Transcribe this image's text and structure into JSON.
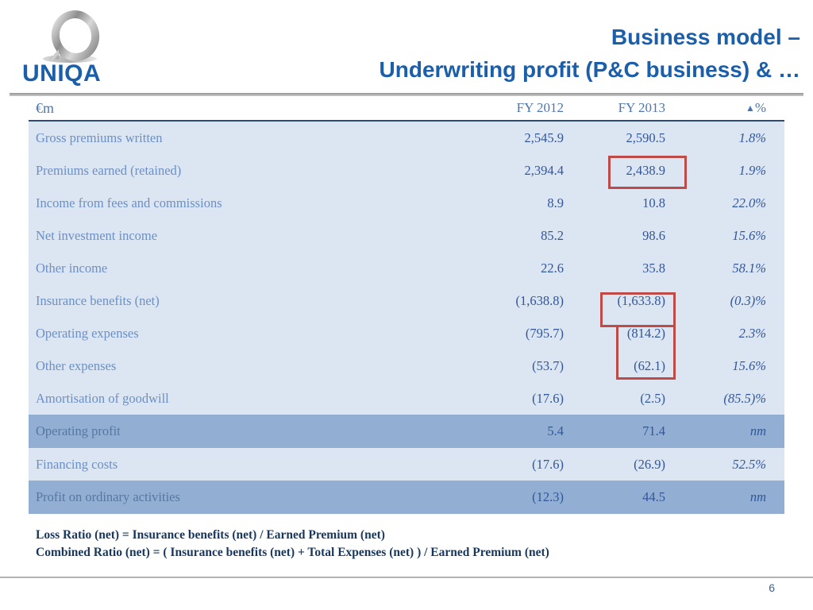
{
  "slide": {
    "logo_text": "UNIQA",
    "title_line1": "Business model –",
    "title_line2": "Underwriting profit (P&C business) & …",
    "page_number": "6"
  },
  "table": {
    "unit_label": "€m",
    "columns": {
      "col1": "FY 2012",
      "col2": "FY 2013",
      "col3_icon": "▲",
      "col3": "%"
    },
    "rows": [
      {
        "label": "Gross premiums written",
        "fy2012": "2,545.9",
        "fy2013": "2,590.5",
        "delta": "1.8%",
        "shade": "light"
      },
      {
        "label": "Premiums earned (retained)",
        "fy2012": "2,394.4",
        "fy2013": "2,438.9",
        "delta": "1.9%",
        "shade": "light",
        "highlight_fy2013": true
      },
      {
        "label": "Income from fees and commissions",
        "fy2012": "8.9",
        "fy2013": "10.8",
        "delta": "22.0%",
        "shade": "light"
      },
      {
        "label": "Net investment income",
        "fy2012": "85.2",
        "fy2013": "98.6",
        "delta": "15.6%",
        "shade": "light"
      },
      {
        "label": "Other income",
        "fy2012": "22.6",
        "fy2013": "35.8",
        "delta": "58.1%",
        "shade": "light"
      },
      {
        "label": "Insurance benefits (net)",
        "fy2012": "(1,638.8)",
        "fy2013": "(1,633.8)",
        "delta": "(0.3)%",
        "shade": "light",
        "highlight_fy2013": true
      },
      {
        "label": "Operating expenses",
        "fy2012": "(795.7)",
        "fy2013": "(814.2)",
        "delta": "2.3%",
        "shade": "light",
        "highlight_fy2013": true
      },
      {
        "label": "Other expenses",
        "fy2012": "(53.7)",
        "fy2013": "(62.1)",
        "delta": "15.6%",
        "shade": "light",
        "highlight_fy2013": true
      },
      {
        "label": "Amortisation of goodwill",
        "fy2012": "(17.6)",
        "fy2013": "(2.5)",
        "delta": "(85.5)%",
        "shade": "light"
      },
      {
        "label": "Operating profit",
        "fy2012": "5.4",
        "fy2013": "71.4",
        "delta": "nm",
        "shade": "band"
      },
      {
        "label": "Financing costs",
        "fy2012": "(17.6)",
        "fy2013": "(26.9)",
        "delta": "52.5%",
        "shade": "light"
      },
      {
        "label": "Profit on ordinary activities",
        "fy2012": "(12.3)",
        "fy2013": "44.5",
        "delta": "nm",
        "shade": "band"
      }
    ],
    "highlighted_values": [
      "2,438.9",
      "(1,633.8)",
      "(814.2)",
      "(62.1)"
    ]
  },
  "footnotes": [
    "Loss Ratio (net) = Insurance benefits (net) / Earned Premium (net)",
    "Combined Ratio (net) = ( Insurance benefits (net) + Total Expenses (net) ) / Earned Premium (net)"
  ],
  "colors": {
    "title_blue": "#1B5EA9",
    "label_blue": "#6C8FC4",
    "num_blue": "#31569B",
    "light_row": "#DCE6F2",
    "dark_row": "#92AFD3",
    "accent_red": "#BE4B48",
    "footnote_navy": "#17375E"
  }
}
